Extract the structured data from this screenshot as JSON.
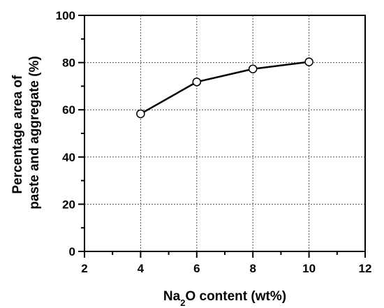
{
  "chart_data": {
    "type": "line",
    "xlabel_parts": {
      "pre": "Na",
      "sub": "2",
      "post": "O content (wt%)"
    },
    "ylabel_lines": [
      "Percentage area of",
      "paste and aggregate (%)"
    ],
    "xlim": [
      2,
      12
    ],
    "ylim": [
      0,
      100
    ],
    "x_ticks": [
      2,
      4,
      6,
      8,
      10,
      12
    ],
    "y_ticks": [
      0,
      20,
      40,
      60,
      80,
      100
    ],
    "grid": true,
    "series": [
      {
        "x": [
          4,
          6,
          8,
          10
        ],
        "y": [
          58.3,
          71.8,
          77.3,
          80.3
        ],
        "marker": "open-circle",
        "line_color": "#000000"
      }
    ]
  }
}
